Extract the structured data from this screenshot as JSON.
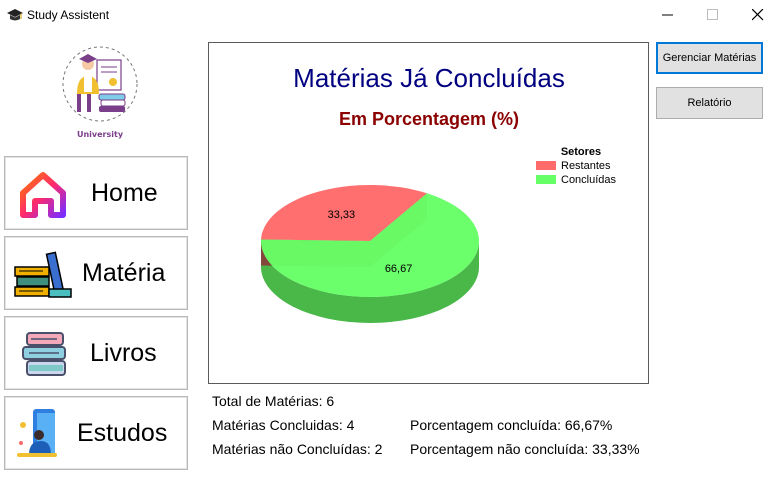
{
  "window": {
    "title": "Study Assistent"
  },
  "logo": {
    "label": "University"
  },
  "nav": [
    {
      "id": "home",
      "label": "Home",
      "icon": "house-icon"
    },
    {
      "id": "materia",
      "label": "Matéria",
      "icon": "books-icon"
    },
    {
      "id": "livros",
      "label": "Livros",
      "icon": "book-stack-icon"
    },
    {
      "id": "estudos",
      "label": "Estudos",
      "icon": "student-reading-icon"
    }
  ],
  "buttons": {
    "gerenciar": "Gerenciar Matérias",
    "relatorio": "Relatório"
  },
  "stats": {
    "total": "Total de Matérias: 6",
    "concluidas": "Matérias Concluidas: 4",
    "nao_concluidas": "Matérias não Concluídas: 2",
    "pct_concluida": "Porcentagem concluída: 66,67%",
    "pct_nao_concluida": "Porcentagem não concluída: 33,33%"
  },
  "colors": {
    "restantes": "#ff6a6a",
    "concluidas": "#66ff66",
    "title": "#000080",
    "subtitle": "#8b0000"
  },
  "chart_data": {
    "type": "pie",
    "title": "Matérias Já Concluídas",
    "subtitle": "Em Porcentagem (%)",
    "legend_title": "Setores",
    "legend_position": "top-right",
    "series": [
      {
        "name": "Restantes",
        "value": 33.33,
        "label": "33,33",
        "color": "#ff6a6a"
      },
      {
        "name": "Concluídas",
        "value": 66.67,
        "label": "66,67",
        "color": "#66ff66"
      }
    ]
  }
}
